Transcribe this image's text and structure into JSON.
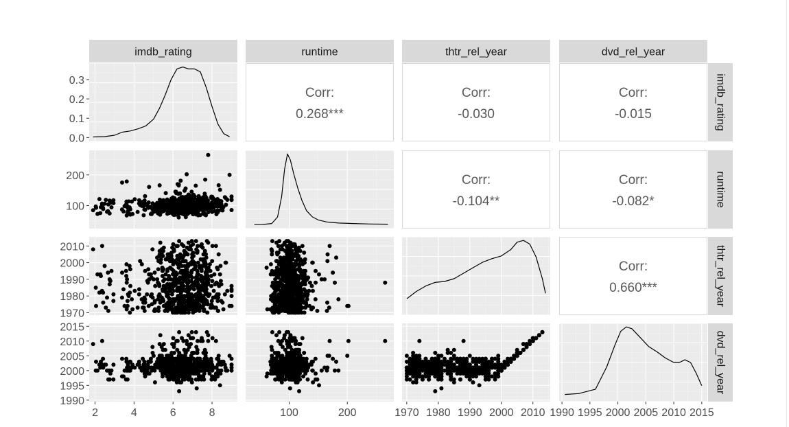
{
  "chart_data": {
    "type": "scatter-matrix",
    "variables": [
      "imdb_rating",
      "runtime",
      "thtr_rel_year",
      "dvd_rel_year"
    ],
    "corr_label": "Corr:",
    "correlations": [
      {
        "row": 0,
        "col": 1,
        "value": "0.268***"
      },
      {
        "row": 0,
        "col": 2,
        "value": "-0.030"
      },
      {
        "row": 0,
        "col": 3,
        "value": "-0.015"
      },
      {
        "row": 1,
        "col": 2,
        "value": "-0.104**"
      },
      {
        "row": 1,
        "col": 3,
        "value": "-0.082*"
      },
      {
        "row": 2,
        "col": 3,
        "value": "0.660***"
      }
    ],
    "x_axes": [
      {
        "range": [
          1.7,
          9.3
        ],
        "ticks": [
          2,
          4,
          6,
          8
        ]
      },
      {
        "range": [
          25,
          280
        ],
        "ticks": [
          100,
          200
        ]
      },
      {
        "range": [
          1968.5,
          2015.5
        ],
        "ticks": [
          1970,
          1980,
          1990,
          2000,
          2010
        ]
      },
      {
        "range": [
          1989.5,
          2016
        ],
        "ticks": [
          1990,
          1995,
          2000,
          2005,
          2010,
          2015
        ]
      }
    ],
    "y_axes": [
      {
        "range": [
          -0.02,
          0.385
        ],
        "ticks": [
          0.0,
          0.1,
          0.2,
          0.3
        ],
        "tick_labels": [
          "0.0",
          "0.1",
          "0.2",
          "0.3"
        ]
      },
      {
        "range": [
          25,
          280
        ],
        "ticks": [
          100,
          200
        ]
      },
      {
        "range": [
          1968.5,
          2015.5
        ],
        "ticks": [
          1970,
          1980,
          1990,
          2000,
          2010
        ]
      },
      {
        "range": [
          1989.5,
          2016
        ],
        "ticks": [
          1990,
          1995,
          2000,
          2005,
          2010,
          2015
        ]
      }
    ],
    "density_imdb_rating": {
      "x": [
        1.9,
        2.5,
        3.0,
        3.4,
        3.8,
        4.2,
        4.6,
        5.0,
        5.3,
        5.6,
        5.9,
        6.2,
        6.5,
        6.8,
        7.1,
        7.4,
        7.7,
        8.0,
        8.3,
        8.6,
        8.9
      ],
      "y": [
        0.003,
        0.005,
        0.012,
        0.028,
        0.034,
        0.045,
        0.06,
        0.095,
        0.15,
        0.22,
        0.3,
        0.355,
        0.365,
        0.355,
        0.355,
        0.34,
        0.26,
        0.16,
        0.07,
        0.02,
        0.004
      ]
    },
    "density_runtime": {
      "x": [
        40,
        55,
        70,
        80,
        87,
        92,
        97,
        102,
        108,
        115,
        122,
        130,
        140,
        150,
        165,
        185,
        210,
        240,
        270
      ],
      "y": [
        0.4,
        0.6,
        1.5,
        8,
        28,
        55,
        70,
        64,
        50,
        36,
        24,
        14,
        8,
        5,
        3,
        2,
        1.5,
        1,
        0.8
      ]
    },
    "density_thtr_rel_year": {
      "x": [
        1970,
        1973,
        1976,
        1979,
        1982,
        1985,
        1988,
        1991,
        1994,
        1997,
        2000,
        2003,
        2005,
        2007,
        2009,
        2011,
        2013,
        2014
      ],
      "y": [
        0.007,
        0.011,
        0.014,
        0.016,
        0.0165,
        0.018,
        0.021,
        0.024,
        0.027,
        0.029,
        0.0305,
        0.034,
        0.038,
        0.039,
        0.037,
        0.03,
        0.018,
        0.01
      ]
    },
    "density_dvd_rel_year": {
      "x": [
        1990.5,
        1993,
        1996,
        1998,
        1999.5,
        2000.5,
        2001.5,
        2002.5,
        2004,
        2005.5,
        2007,
        2008.5,
        2010,
        2011,
        2012,
        2013,
        2014,
        2015
      ],
      "y": [
        0.004,
        0.005,
        0.01,
        0.035,
        0.06,
        0.075,
        0.08,
        0.078,
        0.068,
        0.058,
        0.052,
        0.045,
        0.04,
        0.04,
        0.043,
        0.04,
        0.028,
        0.014
      ]
    },
    "points_per_panel": 650,
    "grid": true
  }
}
